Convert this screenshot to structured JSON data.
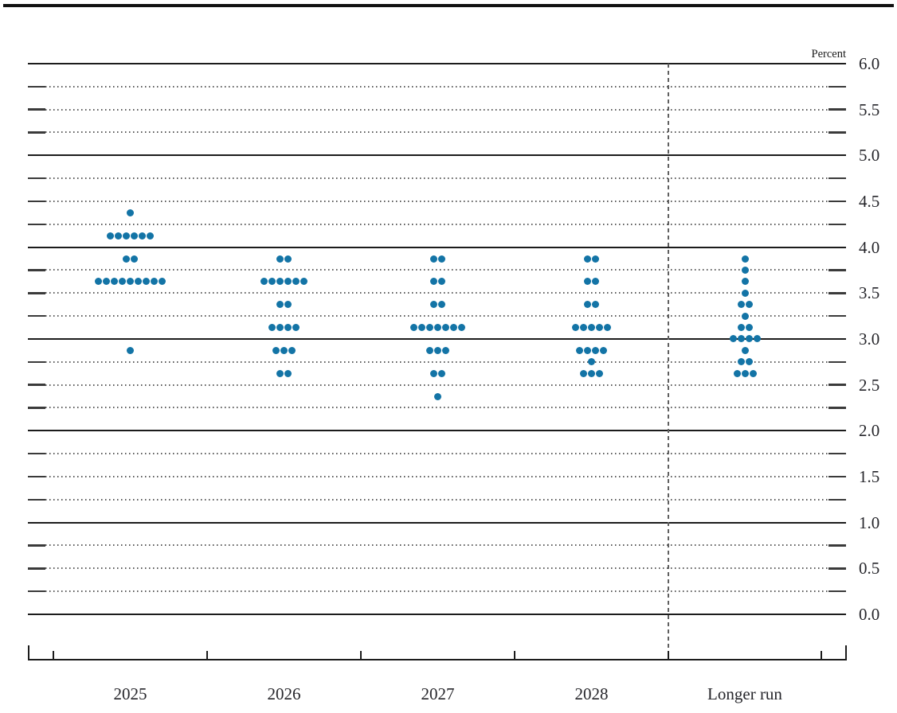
{
  "y_axis": {
    "title": "Percent",
    "min": 0.0,
    "max": 6.0,
    "minor_step": 0.25,
    "major_step": 1.0,
    "tick_labels": [
      "6.0",
      "5.5",
      "5.0",
      "4.5",
      "4.0",
      "3.5",
      "3.0",
      "2.5",
      "2.0",
      "1.5",
      "1.0",
      "0.5",
      "0.0"
    ]
  },
  "x_axis": {
    "categories": [
      "2025",
      "2026",
      "2027",
      "2028",
      "Longer run"
    ]
  },
  "colors": {
    "dot": "#1374a6",
    "grid_solid": "#1c1c1c",
    "grid_dotted": "#5a5a5a",
    "text": "#26262b"
  },
  "chart_data": {
    "type": "scatter",
    "subtype": "fomc-dot-plot",
    "ylabel": "Percent",
    "ylim": [
      0.0,
      6.0
    ],
    "grid": "solid lines at whole percents, dotted lines at quarter percents",
    "legend_position": "none",
    "categories": [
      "2025",
      "2026",
      "2027",
      "2028",
      "Longer run"
    ],
    "separator_before_category": "Longer run",
    "series": [
      {
        "category": "2025",
        "dots": [
          {
            "rate": 4.375,
            "count": 1
          },
          {
            "rate": 4.125,
            "count": 6
          },
          {
            "rate": 3.875,
            "count": 2
          },
          {
            "rate": 3.625,
            "count": 9
          },
          {
            "rate": 2.875,
            "count": 1
          }
        ]
      },
      {
        "category": "2026",
        "dots": [
          {
            "rate": 3.875,
            "count": 2
          },
          {
            "rate": 3.625,
            "count": 6
          },
          {
            "rate": 3.375,
            "count": 2
          },
          {
            "rate": 3.125,
            "count": 4
          },
          {
            "rate": 2.875,
            "count": 3
          },
          {
            "rate": 2.625,
            "count": 2
          }
        ]
      },
      {
        "category": "2027",
        "dots": [
          {
            "rate": 3.875,
            "count": 2
          },
          {
            "rate": 3.625,
            "count": 2
          },
          {
            "rate": 3.375,
            "count": 2
          },
          {
            "rate": 3.125,
            "count": 7
          },
          {
            "rate": 2.875,
            "count": 3
          },
          {
            "rate": 2.625,
            "count": 2
          },
          {
            "rate": 2.375,
            "count": 1
          }
        ]
      },
      {
        "category": "2028",
        "dots": [
          {
            "rate": 3.875,
            "count": 2
          },
          {
            "rate": 3.625,
            "count": 2
          },
          {
            "rate": 3.375,
            "count": 2
          },
          {
            "rate": 3.125,
            "count": 5
          },
          {
            "rate": 2.875,
            "count": 4
          },
          {
            "rate": 2.75,
            "count": 1
          },
          {
            "rate": 2.625,
            "count": 3
          }
        ]
      },
      {
        "category": "Longer run",
        "dots": [
          {
            "rate": 3.875,
            "count": 1
          },
          {
            "rate": 3.75,
            "count": 1
          },
          {
            "rate": 3.625,
            "count": 1
          },
          {
            "rate": 3.5,
            "count": 1
          },
          {
            "rate": 3.375,
            "count": 2
          },
          {
            "rate": 3.25,
            "count": 1
          },
          {
            "rate": 3.125,
            "count": 2
          },
          {
            "rate": 3.0,
            "count": 4
          },
          {
            "rate": 2.875,
            "count": 1
          },
          {
            "rate": 2.75,
            "count": 2
          },
          {
            "rate": 2.625,
            "count": 3
          }
        ]
      }
    ]
  }
}
